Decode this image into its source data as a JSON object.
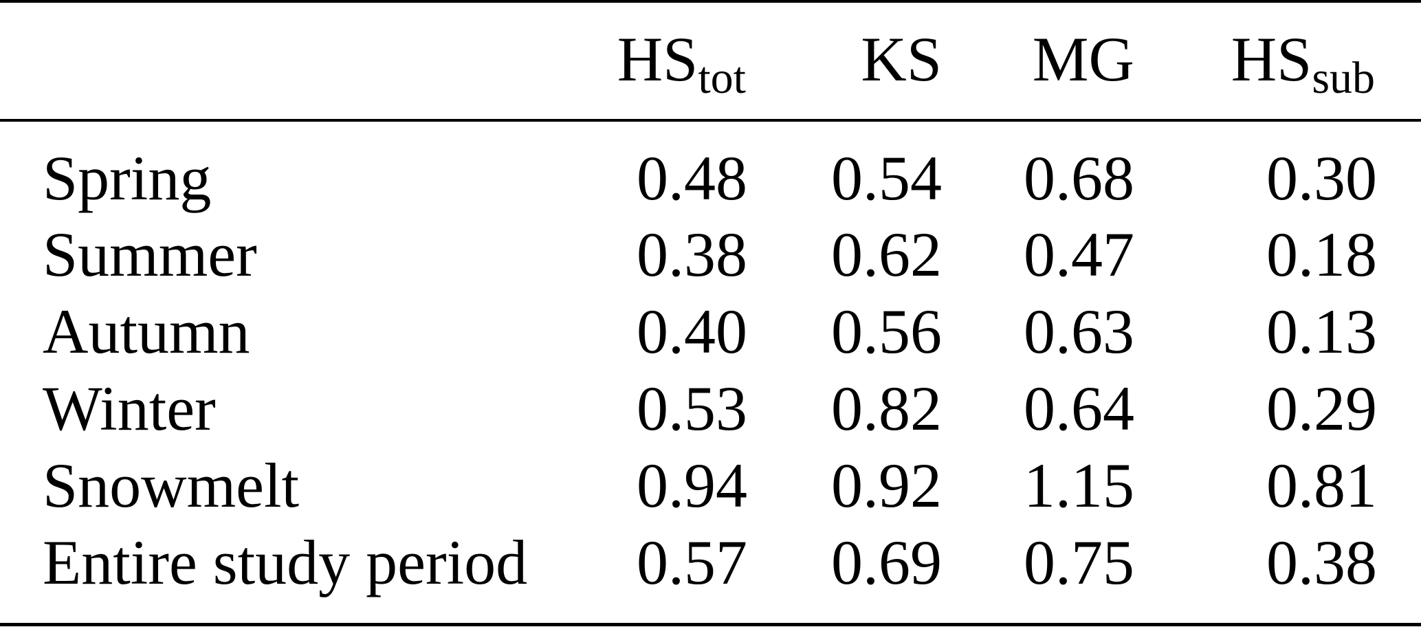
{
  "table": {
    "columns": [
      {
        "main": "HS",
        "sub": "tot"
      },
      {
        "main": "KS",
        "sub": ""
      },
      {
        "main": "MG",
        "sub": ""
      },
      {
        "main": "HS",
        "sub": "sub"
      }
    ],
    "rows": [
      {
        "label": "Spring",
        "values": [
          "0.48",
          "0.54",
          "0.68",
          "0.30"
        ]
      },
      {
        "label": "Summer",
        "values": [
          "0.38",
          "0.62",
          "0.47",
          "0.18"
        ]
      },
      {
        "label": "Autumn",
        "values": [
          "0.40",
          "0.56",
          "0.63",
          "0.13"
        ]
      },
      {
        "label": "Winter",
        "values": [
          "0.53",
          "0.82",
          "0.64",
          "0.29"
        ]
      },
      {
        "label": "Snowmelt",
        "values": [
          "0.94",
          "0.92",
          "1.15",
          "0.81"
        ]
      },
      {
        "label": "Entire study period",
        "values": [
          "0.57",
          "0.69",
          "0.75",
          "0.38"
        ]
      }
    ]
  }
}
